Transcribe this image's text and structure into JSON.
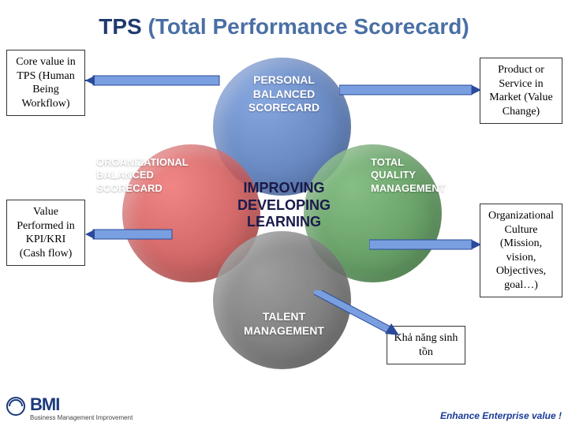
{
  "title": {
    "abbrev": "TPS",
    "full": "(Total Performance Scorecard)"
  },
  "diagram": {
    "type": "venn-4-circle",
    "circles": {
      "top": {
        "label": "PERSONAL\nBALANCED\nSCORECARD",
        "color": "#3a5fa0",
        "text_color": "#ffffff"
      },
      "left": {
        "label": "ORGANIZATIONAL\nBALANCED\nSCORECARD",
        "color": "#b33a3a",
        "text_color": "#ffffff",
        "label_outside": true
      },
      "right": {
        "label": "TOTAL\nQUALITY\nMANAGEMENT",
        "color": "#3a7a3a",
        "text_color": "#ffffff",
        "label_outside": true
      },
      "bottom": {
        "label": "TALENT\nMANAGEMENT",
        "color": "#555555",
        "text_color": "#ffffff"
      }
    },
    "center_label": "IMPROVING\nDEVELOPING\nLEARNING",
    "background_color": "#ffffff"
  },
  "callouts": {
    "top_left": "Core value in TPS (Human Being Workflow)",
    "bottom_left": "Value Performed in KPI/KRI (Cash flow)",
    "top_right": "Product or Service in Market (Value Change)",
    "bottom_right": "Organizational Culture (Mission, vision, Objectives, goal…)",
    "bottom_center": "Khả năng sinh tồn"
  },
  "arrows": {
    "color_fill": "#7a9fe0",
    "color_stroke": "#2a4a9a"
  },
  "footer": {
    "logo_text": "BMI",
    "logo_subtitle": "Business Management Improvement",
    "tagline": "Enhance Enterprise value !"
  },
  "colors": {
    "title_dark": "#1f3a6e",
    "title_light": "#4a6fa5"
  }
}
